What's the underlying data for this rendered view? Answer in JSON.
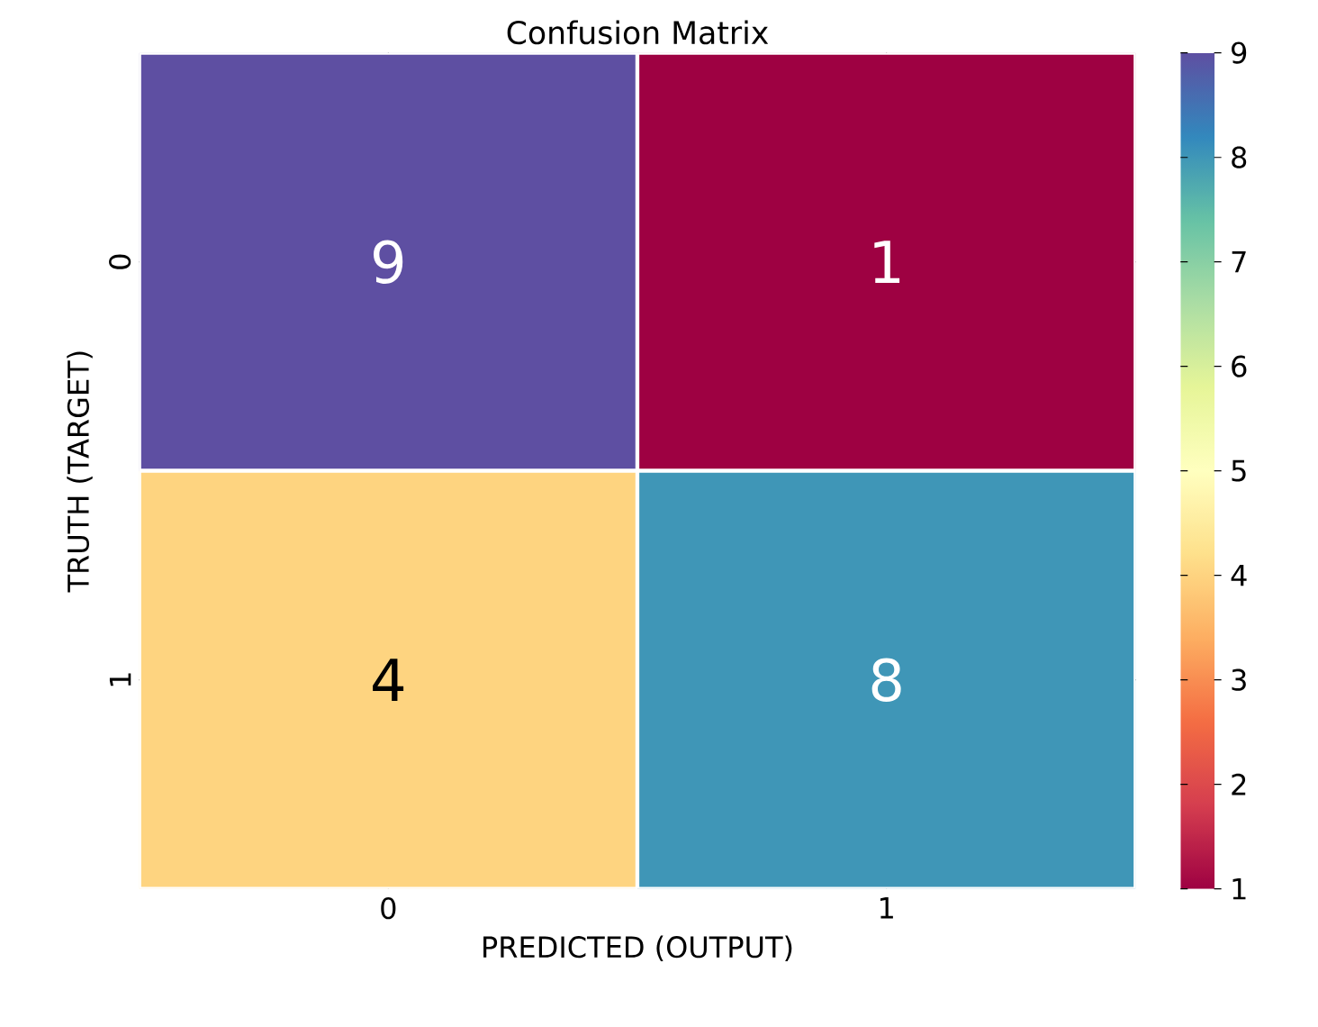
{
  "chart_data": {
    "type": "heatmap",
    "title": "Confusion Matrix",
    "xlabel": "PREDICTED (OUTPUT)",
    "ylabel": "TRUTH (TARGET)",
    "categories": [
      "0",
      "1"
    ],
    "y_categories": [
      "0",
      "1"
    ],
    "cells": [
      [
        9,
        1
      ],
      [
        4,
        8
      ]
    ],
    "clim": [
      1,
      9
    ],
    "cticks": [
      1,
      2,
      3,
      4,
      5,
      6,
      7,
      8,
      9
    ],
    "data_labels": true
  }
}
